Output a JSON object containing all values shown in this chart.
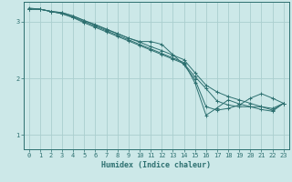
{
  "xlabel": "Humidex (Indice chaleur)",
  "bg_color": "#cce8e8",
  "grid_color": "#aacece",
  "line_color": "#2d7070",
  "xlim": [
    -0.5,
    23.5
  ],
  "ylim": [
    0.75,
    3.35
  ],
  "yticks": [
    1,
    2,
    3
  ],
  "xticks": [
    0,
    1,
    2,
    3,
    4,
    5,
    6,
    7,
    8,
    9,
    10,
    11,
    12,
    13,
    14,
    15,
    16,
    17,
    18,
    19,
    20,
    21,
    22,
    23
  ],
  "series": [
    {
      "x": [
        0,
        1,
        2,
        3,
        4,
        5,
        6,
        7,
        8,
        9,
        10,
        11,
        12,
        13,
        14,
        15,
        16,
        17,
        18,
        19,
        20,
        21,
        22,
        23
      ],
      "y": [
        3.22,
        3.22,
        3.18,
        3.14,
        3.08,
        3.0,
        2.92,
        2.84,
        2.76,
        2.68,
        2.6,
        2.52,
        2.44,
        2.36,
        2.28,
        1.92,
        1.35,
        1.48,
        1.62,
        1.55,
        1.5,
        1.45,
        1.42,
        1.56
      ]
    },
    {
      "x": [
        0,
        1,
        2,
        3,
        4,
        5,
        6,
        7,
        8,
        9,
        10,
        11,
        12,
        13,
        14,
        15,
        16,
        17,
        18,
        19,
        20,
        21,
        22,
        23
      ],
      "y": [
        3.22,
        3.22,
        3.18,
        3.16,
        3.1,
        3.02,
        2.94,
        2.86,
        2.79,
        2.71,
        2.65,
        2.65,
        2.6,
        2.42,
        2.24,
        1.98,
        1.5,
        1.44,
        1.47,
        1.53,
        1.65,
        1.73,
        1.65,
        1.56
      ]
    },
    {
      "x": [
        0,
        1,
        2,
        3,
        4,
        5,
        6,
        7,
        8,
        9,
        10,
        11,
        12,
        13,
        14,
        15,
        16,
        17,
        18,
        19,
        20,
        21,
        22,
        23
      ],
      "y": [
        3.22,
        3.22,
        3.18,
        3.16,
        3.1,
        3.02,
        2.95,
        2.87,
        2.79,
        2.71,
        2.64,
        2.56,
        2.49,
        2.41,
        2.33,
        2.1,
        1.88,
        1.76,
        1.68,
        1.62,
        1.56,
        1.5,
        1.44,
        1.56
      ]
    },
    {
      "x": [
        0,
        1,
        2,
        3,
        4,
        5,
        6,
        7,
        8,
        9,
        10,
        11,
        12,
        13,
        14,
        15,
        16,
        17,
        18,
        19,
        20,
        21,
        22,
        23
      ],
      "y": [
        3.24,
        3.22,
        3.18,
        3.14,
        3.07,
        2.98,
        2.9,
        2.82,
        2.74,
        2.66,
        2.58,
        2.5,
        2.42,
        2.34,
        2.26,
        2.03,
        1.82,
        1.6,
        1.53,
        1.5,
        1.5,
        1.5,
        1.47,
        1.56
      ]
    }
  ]
}
